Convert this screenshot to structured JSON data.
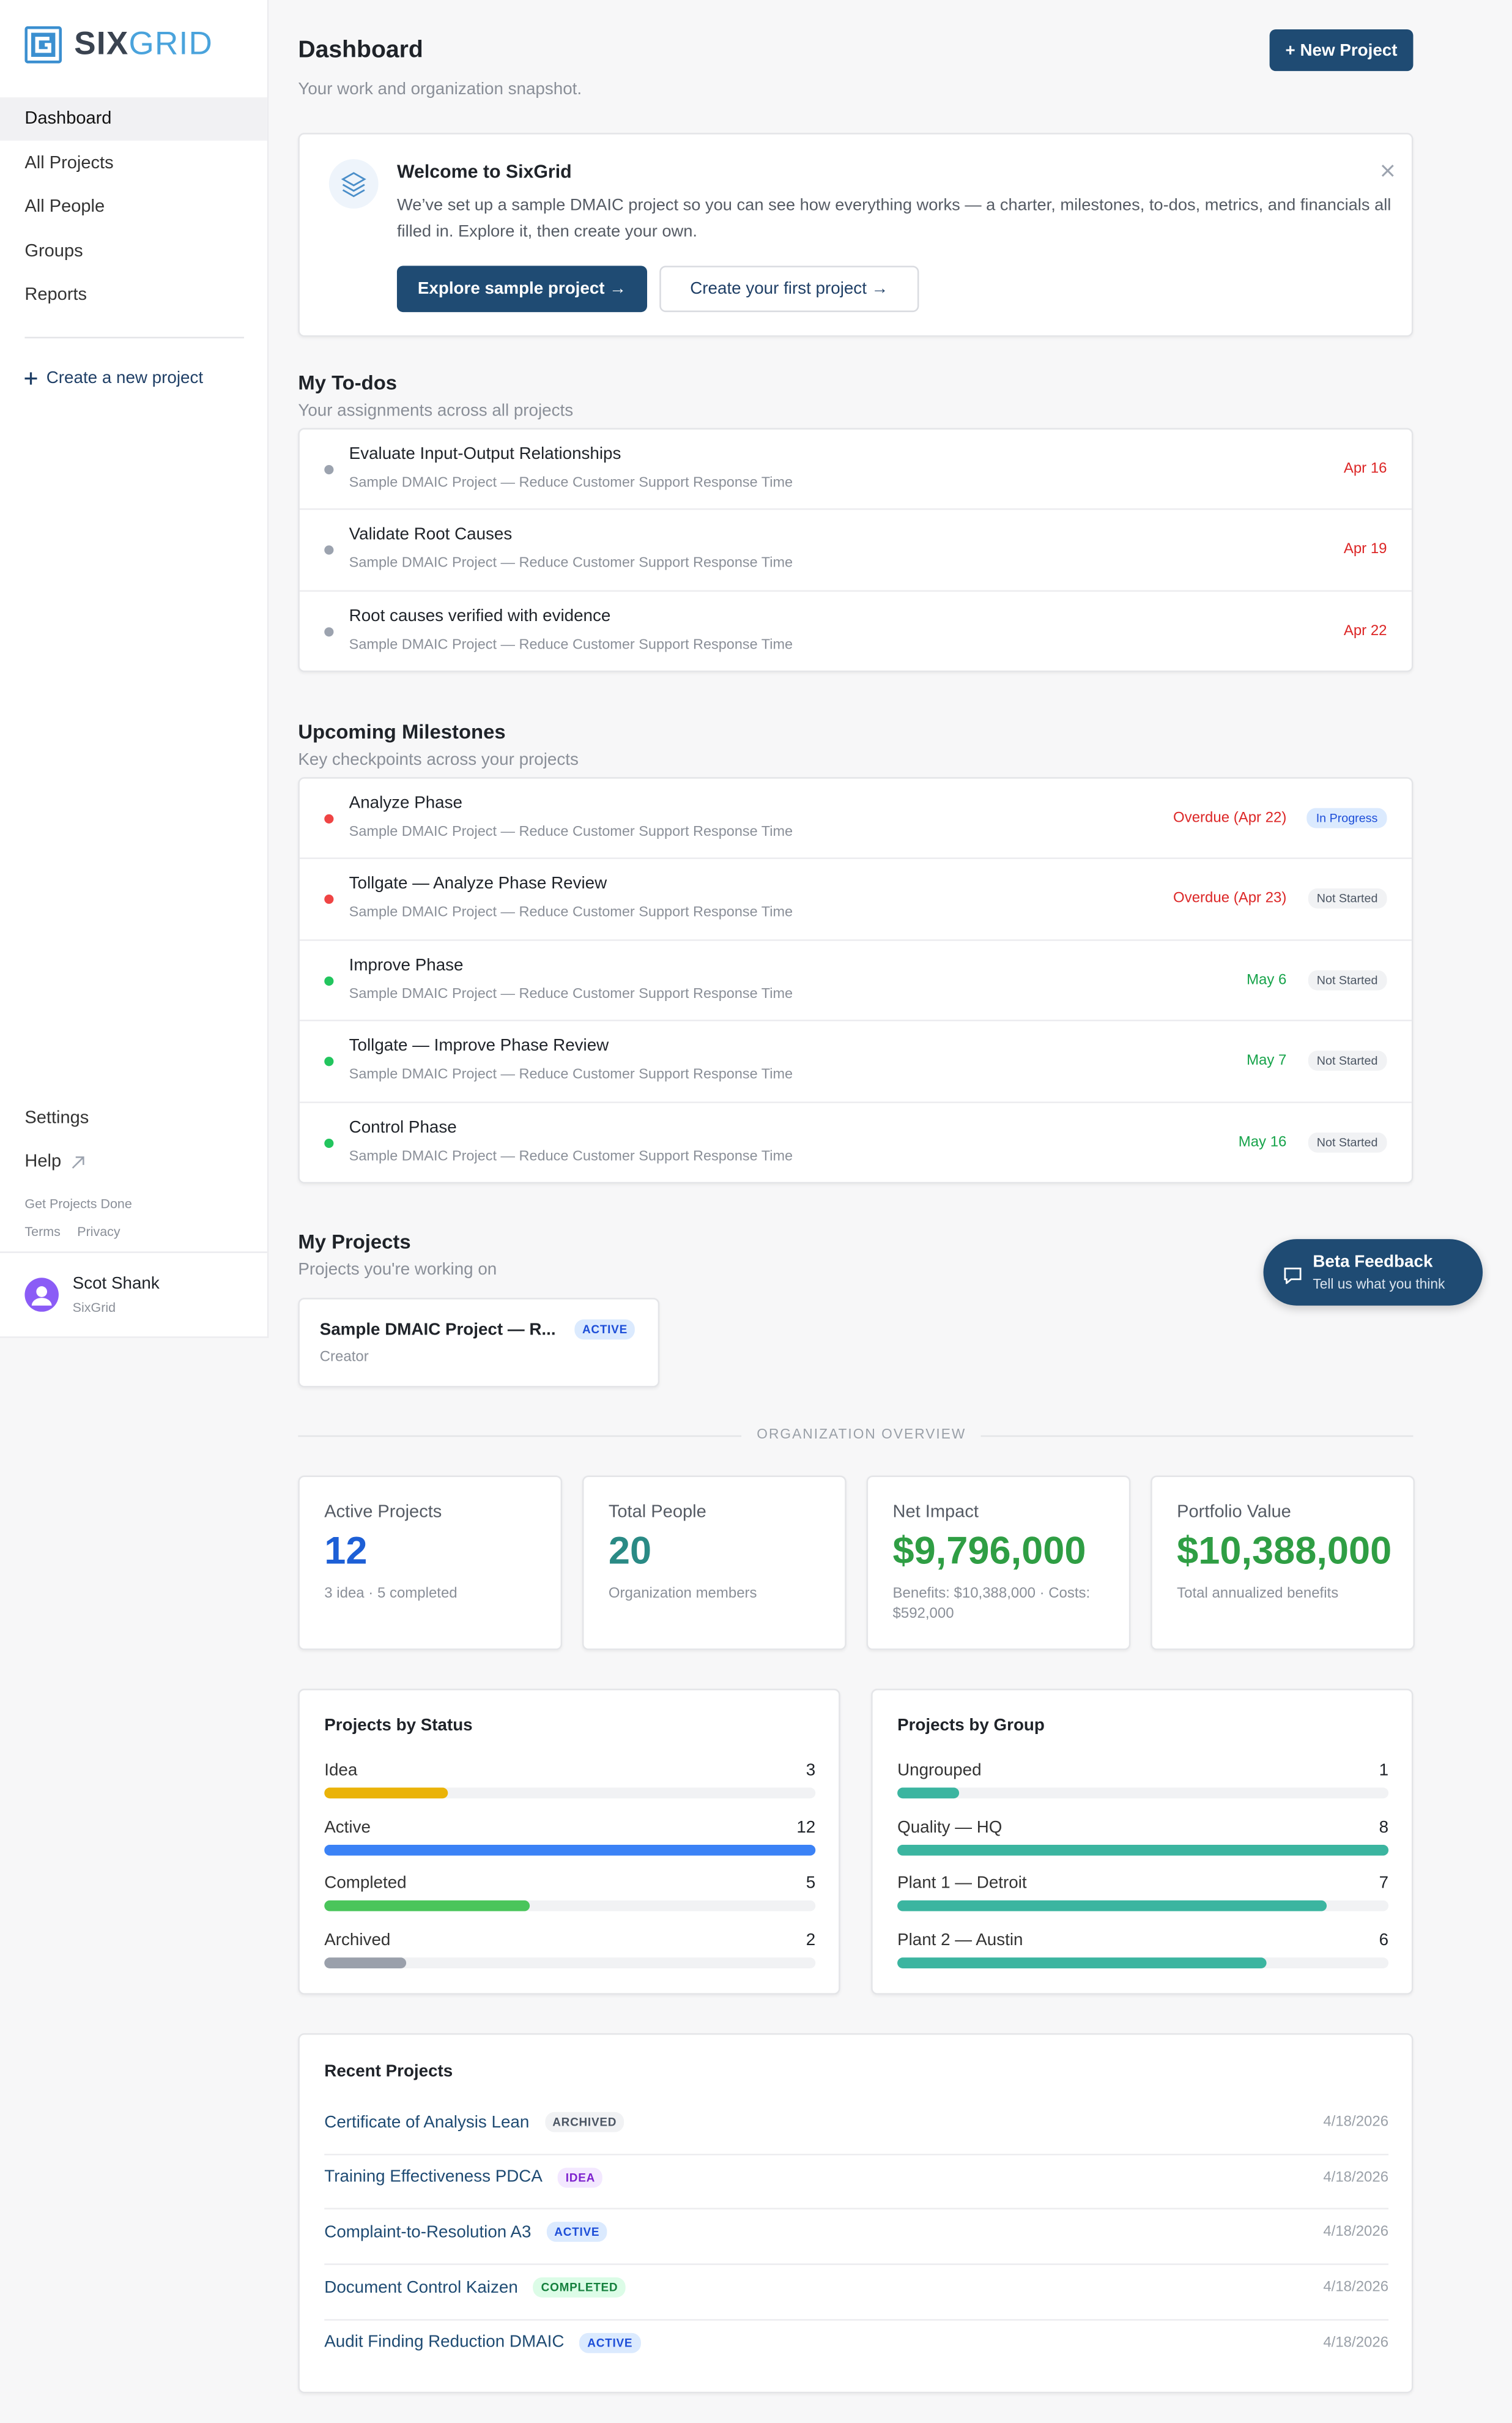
{
  "sidebar": {
    "brand": {
      "primary": "SIX",
      "secondary": "GRID"
    },
    "nav": [
      "Dashboard",
      "All Projects",
      "All People",
      "Groups",
      "Reports"
    ],
    "create": "Create a new project",
    "settings": "Settings",
    "help": "Help",
    "tagline": "Get Projects Done",
    "links": [
      "Terms",
      "Privacy"
    ],
    "user": {
      "name": "Scot Shank",
      "org": "SixGrid"
    }
  },
  "header": {
    "title": "Dashboard",
    "subtitle": "Your work and organization snapshot.",
    "button": "+ New Project"
  },
  "welcome": {
    "title": "Welcome to SixGrid",
    "body": "We’ve set up a sample DMAIC project so you can see how everything works — a charter, milestones, to-dos, metrics, and financials all filled in. Explore it, then create your own.",
    "primary": "Explore sample project →",
    "secondary": "Create your first project →"
  },
  "todos": {
    "title": "My To-dos",
    "subtitle": "Your assignments across all projects",
    "items": [
      {
        "title": "Evaluate Input-Output Relationships",
        "project": "Sample DMAIC Project — Reduce Customer Support Response Time",
        "due": "Apr 16",
        "due_color": "#dc2626",
        "dot_color": "#9ca3af"
      },
      {
        "title": "Validate Root Causes",
        "project": "Sample DMAIC Project — Reduce Customer Support Response Time",
        "due": "Apr 19",
        "due_color": "#dc2626",
        "dot_color": "#9ca3af"
      },
      {
        "title": "Root causes verified with evidence",
        "project": "Sample DMAIC Project — Reduce Customer Support Response Time",
        "due": "Apr 22",
        "due_color": "#dc2626",
        "dot_color": "#9ca3af"
      }
    ]
  },
  "milestones": {
    "title": "Upcoming Milestones",
    "subtitle": "Key checkpoints across your projects",
    "items": [
      {
        "title": "Analyze Phase",
        "project": "Sample DMAIC Project — Reduce Customer Support Response Time",
        "due": "Overdue (Apr 22)",
        "due_color": "#dc2626",
        "dot_color": "#ef4444",
        "status": "In Progress",
        "status_color": "#1d4ed8",
        "status_bg": "#dbeafe"
      },
      {
        "title": "Tollgate — Analyze Phase Review",
        "project": "Sample DMAIC Project — Reduce Customer Support Response Time",
        "due": "Overdue (Apr 23)",
        "due_color": "#dc2626",
        "dot_color": "#ef4444",
        "status": "Not Started",
        "status_color": "#4b5563",
        "status_bg": "#f1f2f4"
      },
      {
        "title": "Improve Phase",
        "project": "Sample DMAIC Project — Reduce Customer Support Response Time",
        "due": "May 6",
        "due_color": "#16a34a",
        "dot_color": "#22c55e",
        "status": "Not Started",
        "status_color": "#4b5563",
        "status_bg": "#f1f2f4"
      },
      {
        "title": "Tollgate — Improve Phase Review",
        "project": "Sample DMAIC Project — Reduce Customer Support Response Time",
        "due": "May 7",
        "due_color": "#16a34a",
        "dot_color": "#22c55e",
        "status": "Not Started",
        "status_color": "#4b5563",
        "status_bg": "#f1f2f4"
      },
      {
        "title": "Control Phase",
        "project": "Sample DMAIC Project — Reduce Customer Support Response Time",
        "due": "May 16",
        "due_color": "#16a34a",
        "dot_color": "#22c55e",
        "status": "Not Started",
        "status_color": "#4b5563",
        "status_bg": "#f1f2f4"
      }
    ]
  },
  "my_projects": {
    "title": "My Projects",
    "subtitle": "Projects you're working on",
    "cards": [
      {
        "name": "Sample DMAIC Project — R...",
        "badge": "ACTIVE",
        "badge_color": "#1d4ed8",
        "badge_bg": "#dbeafe",
        "role": "Creator"
      }
    ]
  },
  "feedback": {
    "title": "Beta Feedback",
    "subtitle": "Tell us what you think"
  },
  "overview": {
    "label": "ORGANIZATION OVERVIEW",
    "stats": [
      {
        "label": "Active Projects",
        "value": "12",
        "note": "3 idea · 5 completed",
        "color": "#1d5fd6"
      },
      {
        "label": "Total People",
        "value": "20",
        "note": "Organization members",
        "color": "#2a8a85"
      },
      {
        "label": "Net Impact",
        "value": "$9,796,000",
        "note": "Benefits: $10,388,000 · Costs: $592,000",
        "color": "#2f9e44"
      },
      {
        "label": "Portfolio Value",
        "value": "$10,388,000",
        "note": "Total annualized benefits",
        "color": "#2f9e44"
      }
    ]
  },
  "by_status": {
    "title": "Projects by Status",
    "rows": [
      {
        "label": "Idea",
        "value": 3,
        "color": "#eab308"
      },
      {
        "label": "Active",
        "value": 12,
        "color": "#3b82f6"
      },
      {
        "label": "Completed",
        "value": 5,
        "color": "#4ac55b"
      },
      {
        "label": "Archived",
        "value": 2,
        "color": "#9aa0ab"
      }
    ]
  },
  "by_group": {
    "title": "Projects by Group",
    "rows": [
      {
        "label": "Ungrouped",
        "value": 1,
        "color": "#3bb5a0"
      },
      {
        "label": "Quality — HQ",
        "value": 8,
        "color": "#3bb5a0"
      },
      {
        "label": "Plant 1 — Detroit",
        "value": 7,
        "color": "#3bb5a0"
      },
      {
        "label": "Plant 2 — Austin",
        "value": 6,
        "color": "#3bb5a0"
      }
    ]
  },
  "recent": {
    "title": "Recent Projects",
    "items": [
      {
        "name": "Certificate of Analysis Lean",
        "badge": "ARCHIVED",
        "badge_color": "#4b5563",
        "badge_bg": "#f1f2f4",
        "date": "4/18/2026"
      },
      {
        "name": "Training Effectiveness PDCA",
        "badge": "IDEA",
        "badge_color": "#7e22ce",
        "badge_bg": "#f3e8ff",
        "date": "4/18/2026"
      },
      {
        "name": "Complaint-to-Resolution A3",
        "badge": "ACTIVE",
        "badge_color": "#1d4ed8",
        "badge_bg": "#dbeafe",
        "date": "4/18/2026"
      },
      {
        "name": "Document Control Kaizen",
        "badge": "COMPLETED",
        "badge_color": "#15803d",
        "badge_bg": "#dcfce7",
        "date": "4/18/2026"
      },
      {
        "name": "Audit Finding Reduction DMAIC",
        "badge": "ACTIVE",
        "badge_color": "#1d4ed8",
        "badge_bg": "#dbeafe",
        "date": "4/18/2026"
      }
    ]
  }
}
